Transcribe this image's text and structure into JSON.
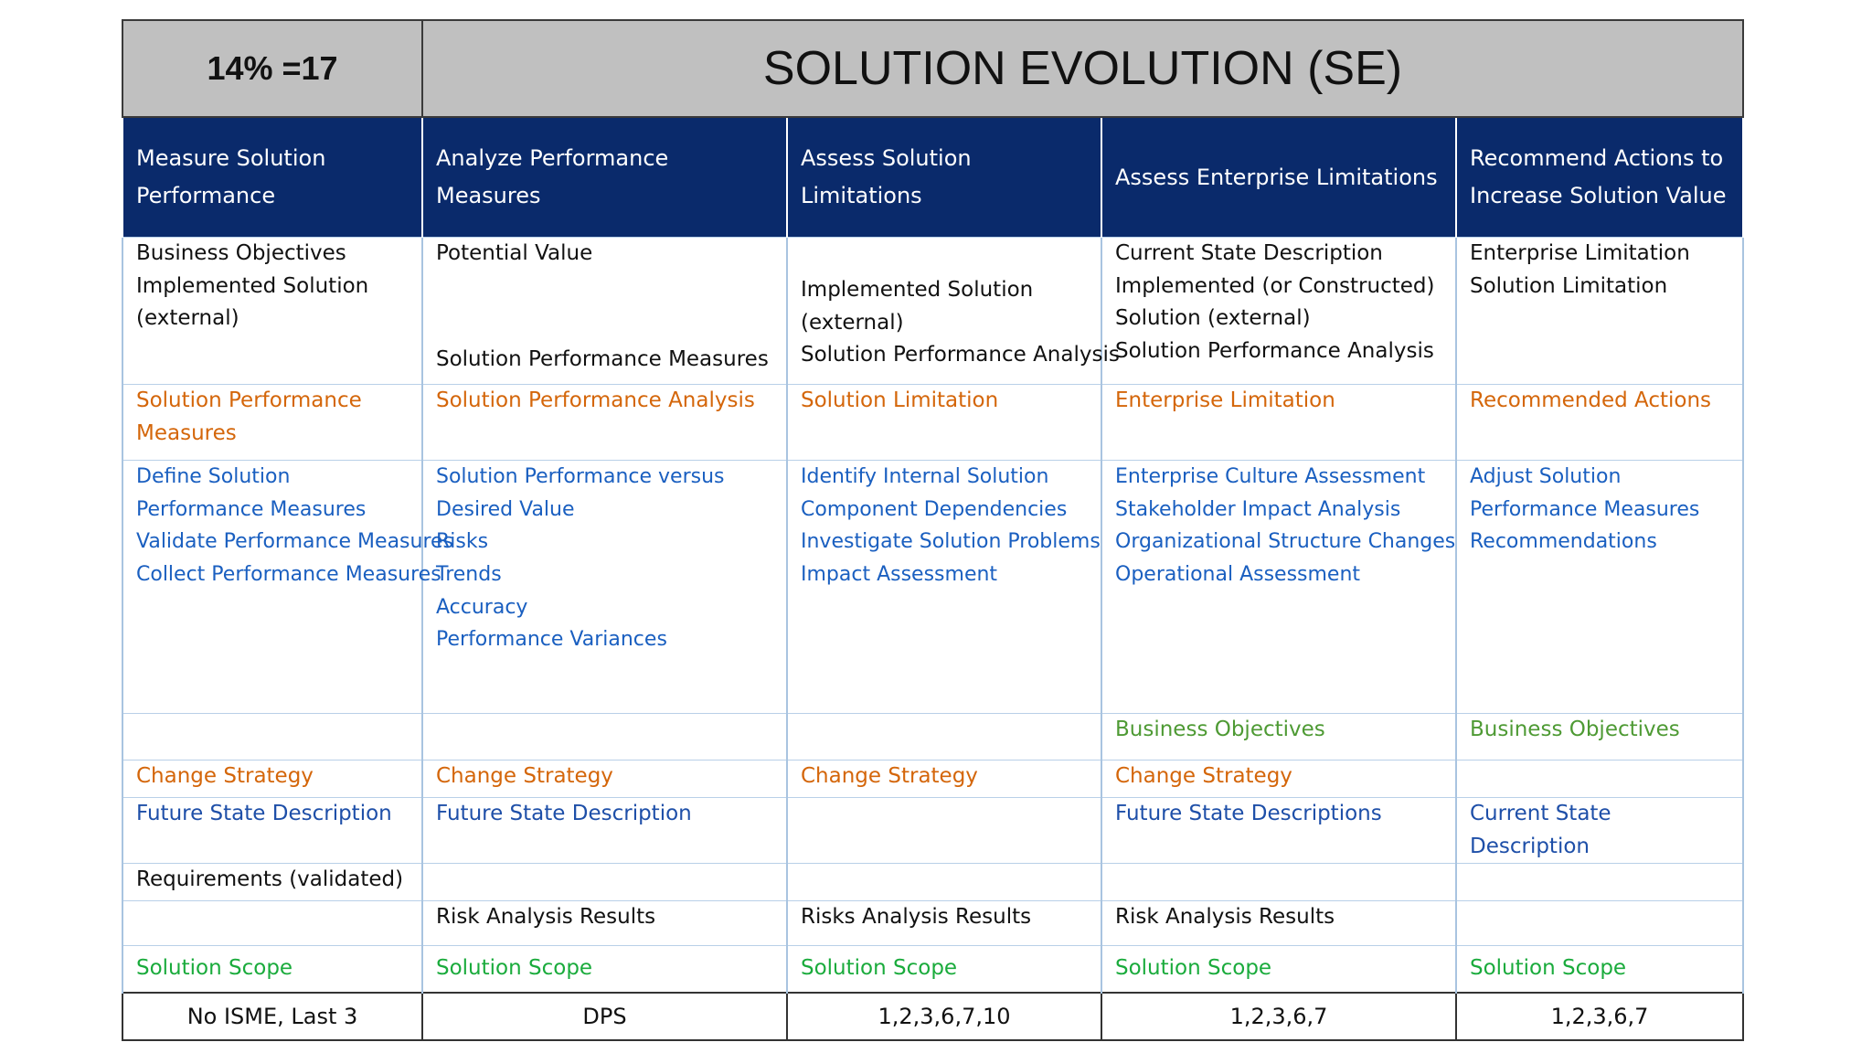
{
  "header": {
    "weight": "14% =17",
    "title": "SOLUTION EVOLUTION (SE)"
  },
  "columns": [
    "Measure Solution Performance",
    "Analyze Performance Measures",
    "Assess Solution Limitations",
    "Assess Enterprise Limitations",
    "Recommend Actions to Increase Solution Value"
  ],
  "inputs": {
    "c1": [
      "Business Objectives",
      "Implemented Solution",
      "(external)"
    ],
    "c2_top": "Potential Value",
    "c2_bottom": "Solution Performance Measures",
    "c3": [
      "Implemented Solution",
      "(external)",
      "Solution Performance Analysis"
    ],
    "c4": [
      "Current State Description",
      "Implemented (or Constructed)",
      "Solution (external)",
      "Solution Performance Analysis"
    ],
    "c5": [
      "Enterprise Limitation",
      "Solution Limitation"
    ]
  },
  "outputs": [
    "Solution Performance Measures",
    "Solution Performance Analysis",
    "Solution Limitation",
    "Enterprise Limitation",
    "Recommended Actions"
  ],
  "tasks": {
    "c1": [
      "Define Solution Performance Measures",
      "Validate Performance Measures",
      "Collect Performance Measures"
    ],
    "c2": [
      "Solution Performance versus Desired Value",
      "Risks",
      "Trends",
      "Accuracy",
      "Performance Variances"
    ],
    "c3": [
      "Identify Internal Solution Component Dependencies",
      "Investigate Solution Problems",
      "Impact Assessment"
    ],
    "c4": [
      "Enterprise Culture Assessment",
      "Stakeholder Impact Analysis",
      "Organizational Structure Changes",
      "Operational Assessment"
    ],
    "c5": [
      "Adjust Solution Performance Measures",
      "Recommendations"
    ]
  },
  "business_objectives": {
    "c4": "Business Objectives",
    "c5": "Business Objectives"
  },
  "change_strategy": {
    "c1": "Change Strategy",
    "c2": "Change Strategy",
    "c3": "Change Strategy",
    "c4": "Change Strategy"
  },
  "future_state": {
    "c1": "Future State Description",
    "c2": "Future State Description",
    "c4": "Future State Descriptions",
    "c5": "Current State Description"
  },
  "requirements": {
    "c1": "Requirements (validated)"
  },
  "risk": {
    "c2": "Risk Analysis Results",
    "c3": "Risks Analysis Results",
    "c4": "Risk Analysis Results"
  },
  "solution_scope": [
    "Solution Scope",
    "Solution Scope",
    "Solution Scope",
    "Solution Scope",
    "Solution Scope"
  ],
  "footer": [
    "No ISME, Last 3",
    "DPS",
    "1,2,3,6,7,10",
    "1,2,3,6,7",
    "1,2,3,6,7"
  ],
  "colors": {
    "header_bg": "#0a2a6b",
    "title_bg": "#c0c0c0",
    "output": "#d4660a",
    "task": "#1a5fc0",
    "scope": "#1aab3c",
    "objective": "#4e9a34",
    "future": "#1e4fa8"
  }
}
